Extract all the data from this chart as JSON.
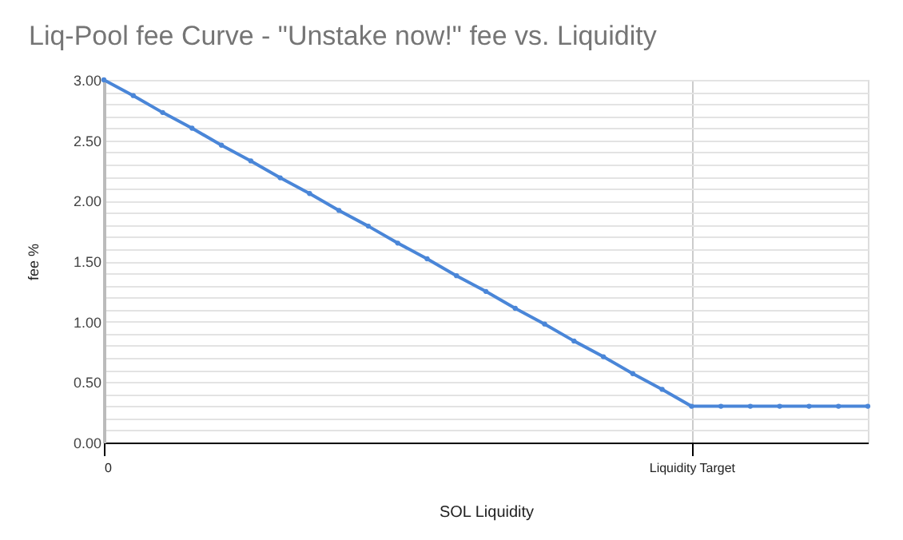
{
  "chart_data": {
    "type": "line",
    "title": "Liq-Pool fee Curve - \"Unstake now!\" fee vs. Liquidity",
    "xlabel": "SOL Liquidity",
    "ylabel": "fee %",
    "categories": [
      "0",
      null,
      null,
      null,
      null,
      null,
      null,
      null,
      null,
      null,
      null,
      null,
      null,
      null,
      null,
      null,
      null,
      null,
      null,
      null,
      "Liquidity Target",
      null,
      null,
      null,
      null,
      null,
      null
    ],
    "series": [
      {
        "color": "#4a86d8",
        "values": [
          3.0,
          2.87,
          2.73,
          2.6,
          2.46,
          2.33,
          2.19,
          2.06,
          1.92,
          1.79,
          1.65,
          1.52,
          1.38,
          1.25,
          1.11,
          0.98,
          0.84,
          0.71,
          0.57,
          0.44,
          0.3,
          0.3,
          0.3,
          0.3,
          0.3,
          0.3,
          0.3
        ]
      }
    ],
    "ylim": [
      0,
      3.0
    ],
    "yticks": [
      {
        "value": 0,
        "label": "0.00"
      },
      {
        "value": 0.1,
        "label": null
      },
      {
        "value": 0.2,
        "label": null
      },
      {
        "value": 0.3,
        "label": null
      },
      {
        "value": 0.4,
        "label": null
      },
      {
        "value": 0.5,
        "label": "0.50"
      },
      {
        "value": 0.6,
        "label": null
      },
      {
        "value": 0.7,
        "label": null
      },
      {
        "value": 0.8,
        "label": null
      },
      {
        "value": 0.9,
        "label": null
      },
      {
        "value": 1.0,
        "label": "1.00"
      },
      {
        "value": 1.1,
        "label": null
      },
      {
        "value": 1.2,
        "label": null
      },
      {
        "value": 1.3,
        "label": null
      },
      {
        "value": 1.4,
        "label": null
      },
      {
        "value": 1.5,
        "label": "1.50"
      },
      {
        "value": 1.6,
        "label": null
      },
      {
        "value": 1.7,
        "label": null
      },
      {
        "value": 1.8,
        "label": null
      },
      {
        "value": 1.9,
        "label": null
      },
      {
        "value": 2.0,
        "label": "2.00"
      },
      {
        "value": 2.1,
        "label": null
      },
      {
        "value": 2.2,
        "label": null
      },
      {
        "value": 2.3,
        "label": null
      },
      {
        "value": 2.4,
        "label": null
      },
      {
        "value": 2.5,
        "label": "2.50"
      },
      {
        "value": 2.6,
        "label": null
      },
      {
        "value": 2.7,
        "label": null
      },
      {
        "value": 2.8,
        "label": null
      },
      {
        "value": 2.9,
        "label": null
      },
      {
        "value": 3.0,
        "label": "3.00"
      }
    ],
    "grid": true,
    "marker": "circle",
    "line_style": "solid"
  }
}
